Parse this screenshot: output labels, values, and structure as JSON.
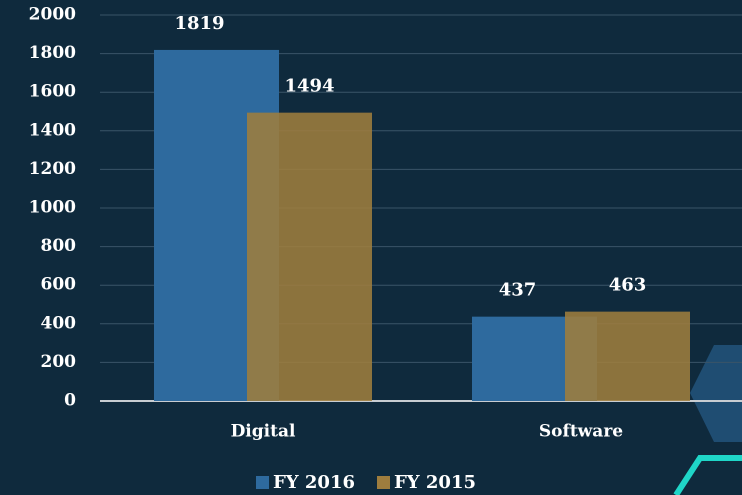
{
  "chart_data": {
    "type": "bar",
    "categories": [
      "Digital",
      "Software"
    ],
    "series": [
      {
        "name": "FY 2016",
        "color": "#2e6a9e",
        "values": [
          1819,
          437
        ]
      },
      {
        "name": "FY 2015",
        "color": "#9e7d3e",
        "values": [
          1494,
          463
        ]
      }
    ],
    "ylim": [
      0,
      2000
    ],
    "yticks": [
      0,
      200,
      400,
      600,
      800,
      1000,
      1200,
      1400,
      1600,
      1800,
      2000
    ],
    "grid": true
  }
}
